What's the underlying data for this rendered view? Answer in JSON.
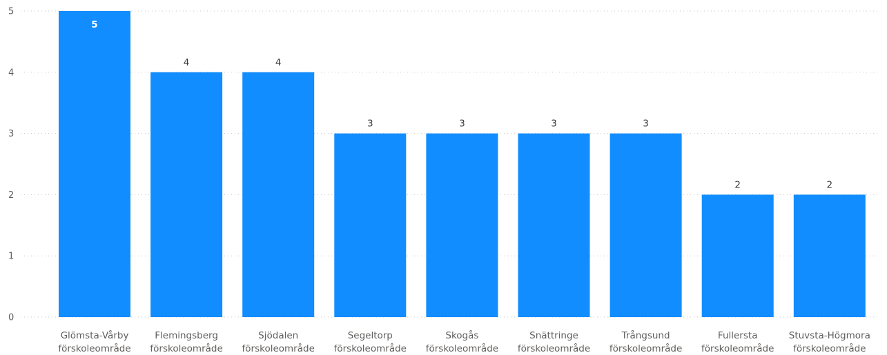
{
  "chart_data": {
    "type": "bar",
    "categories": [
      [
        "Glömsta-Vårby",
        "förskoleområde"
      ],
      [
        "Flemingsberg",
        "förskoleområde"
      ],
      [
        "Sjödalen",
        "förskoleområde"
      ],
      [
        "Segeltorp",
        "förskoleområde"
      ],
      [
        "Skogås",
        "förskoleområde"
      ],
      [
        "Snättringe",
        "förskoleområde"
      ],
      [
        "Trångsund",
        "förskoleområde"
      ],
      [
        "Fullersta",
        "förskoleområde"
      ],
      [
        "Stuvsta-Högmora",
        "förskoleområde"
      ]
    ],
    "values": [
      5,
      4,
      4,
      3,
      3,
      3,
      3,
      2,
      2
    ],
    "ylim": [
      0,
      5
    ],
    "yticks": [
      0,
      1,
      2,
      3,
      4,
      5
    ],
    "grid": true,
    "data_labels": true,
    "bar_color": "#118DFF"
  }
}
